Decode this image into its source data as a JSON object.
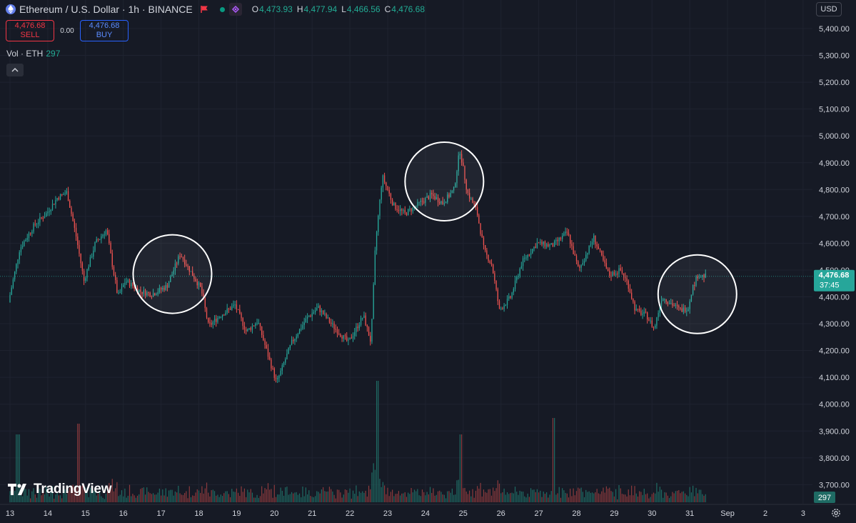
{
  "header": {
    "symbol_title": "Ethereum / U.S. Dollar · 1h · BINANCE",
    "ohlc": [
      {
        "k": "O",
        "v": "4,473.93"
      },
      {
        "k": "H",
        "v": "4,477.94"
      },
      {
        "k": "L",
        "v": "4,466.56"
      },
      {
        "k": "C",
        "v": "4,476.68"
      }
    ]
  },
  "trade": {
    "sell_price": "4,476.68",
    "sell_label": "SELL",
    "spread": "0.00",
    "buy_price": "4,476.68",
    "buy_label": "BUY"
  },
  "volume_legend": {
    "label": "Vol · ETH",
    "value": "297"
  },
  "currency": "USD",
  "brand": "TradingView",
  "price_tag": {
    "price": "4,476.68",
    "countdown": "37:45"
  },
  "volume_tag": "297",
  "colors": {
    "background": "#161a25",
    "up": "#26a69a",
    "down": "#ef5350",
    "text": "#d1d4dc",
    "grid": "#1f2330",
    "price_line": "#26a69a"
  },
  "chart_data": {
    "type": "candlestick",
    "instrument": "Ethereum / U.S. Dollar",
    "interval": "1h",
    "exchange": "BINANCE",
    "y_ticks": [
      "5,400.00",
      "5,300.00",
      "5,200.00",
      "5,100.00",
      "5,000.00",
      "4,900.00",
      "4,800.00",
      "4,700.00",
      "4,600.00",
      "4,500.00",
      "4,400.00",
      "4,300.00",
      "4,200.00",
      "4,100.00",
      "4,000.00",
      "3,900.00",
      "3,800.00",
      "3,700.00"
    ],
    "y_range": [
      3650,
      5440
    ],
    "x_ticks": [
      "13",
      "14",
      "15",
      "16",
      "17",
      "18",
      "19",
      "20",
      "21",
      "22",
      "23",
      "24",
      "25",
      "26",
      "27",
      "28",
      "29",
      "30",
      "31",
      "Sep",
      "2",
      "3"
    ],
    "last_price": 4476.68,
    "approx_hourly_path": [
      {
        "day": 13,
        "price": 4380
      },
      {
        "day": 13.3,
        "price": 4580
      },
      {
        "day": 13.7,
        "price": 4670
      },
      {
        "day": 14,
        "price": 4710
      },
      {
        "day": 14.3,
        "price": 4770
      },
      {
        "day": 14.55,
        "price": 4790
      },
      {
        "day": 14.8,
        "price": 4620
      },
      {
        "day": 15,
        "price": 4460
      },
      {
        "day": 15.3,
        "price": 4600
      },
      {
        "day": 15.6,
        "price": 4650
      },
      {
        "day": 15.75,
        "price": 4520
      },
      {
        "day": 15.9,
        "price": 4400
      },
      {
        "day": 16.1,
        "price": 4460
      },
      {
        "day": 16.5,
        "price": 4420
      },
      {
        "day": 16.8,
        "price": 4410
      },
      {
        "day": 17.2,
        "price": 4440
      },
      {
        "day": 17.55,
        "price": 4560
      },
      {
        "day": 17.8,
        "price": 4500
      },
      {
        "day": 18.1,
        "price": 4430
      },
      {
        "day": 18.3,
        "price": 4290
      },
      {
        "day": 18.6,
        "price": 4330
      },
      {
        "day": 19,
        "price": 4370
      },
      {
        "day": 19.3,
        "price": 4270
      },
      {
        "day": 19.6,
        "price": 4310
      },
      {
        "day": 19.9,
        "price": 4170
      },
      {
        "day": 20.1,
        "price": 4080
      },
      {
        "day": 20.5,
        "price": 4230
      },
      {
        "day": 20.9,
        "price": 4320
      },
      {
        "day": 21.2,
        "price": 4360
      },
      {
        "day": 21.6,
        "price": 4290
      },
      {
        "day": 22,
        "price": 4230
      },
      {
        "day": 22.4,
        "price": 4330
      },
      {
        "day": 22.6,
        "price": 4230
      },
      {
        "day": 22.72,
        "price": 4600
      },
      {
        "day": 22.9,
        "price": 4850
      },
      {
        "day": 23.2,
        "price": 4740
      },
      {
        "day": 23.5,
        "price": 4710
      },
      {
        "day": 23.8,
        "price": 4740
      },
      {
        "day": 24.2,
        "price": 4780
      },
      {
        "day": 24.5,
        "price": 4750
      },
      {
        "day": 24.8,
        "price": 4800
      },
      {
        "day": 24.95,
        "price": 4950
      },
      {
        "day": 25.15,
        "price": 4790
      },
      {
        "day": 25.4,
        "price": 4720
      },
      {
        "day": 25.6,
        "price": 4570
      },
      {
        "day": 25.8,
        "price": 4520
      },
      {
        "day": 26,
        "price": 4350
      },
      {
        "day": 26.3,
        "price": 4400
      },
      {
        "day": 26.6,
        "price": 4530
      },
      {
        "day": 27,
        "price": 4600
      },
      {
        "day": 27.4,
        "price": 4590
      },
      {
        "day": 27.8,
        "price": 4640
      },
      {
        "day": 28.1,
        "price": 4500
      },
      {
        "day": 28.5,
        "price": 4620
      },
      {
        "day": 28.9,
        "price": 4480
      },
      {
        "day": 29.2,
        "price": 4500
      },
      {
        "day": 29.4,
        "price": 4450
      },
      {
        "day": 29.6,
        "price": 4350
      },
      {
        "day": 29.9,
        "price": 4330
      },
      {
        "day": 30.1,
        "price": 4280
      },
      {
        "day": 30.3,
        "price": 4400
      },
      {
        "day": 30.6,
        "price": 4370
      },
      {
        "day": 30.8,
        "price": 4350
      },
      {
        "day": 31,
        "price": 4360
      },
      {
        "day": 31.1,
        "price": 4430
      },
      {
        "day": 31.25,
        "price": 4480
      },
      {
        "day": 31.45,
        "price": 4476.68
      }
    ],
    "annotations": [
      {
        "type": "circle",
        "center_day": 17.3,
        "center_price": 4485
      },
      {
        "type": "circle",
        "center_day": 24.5,
        "center_price": 4830
      },
      {
        "type": "circle",
        "center_day": 31.2,
        "center_price": 4410
      }
    ]
  }
}
